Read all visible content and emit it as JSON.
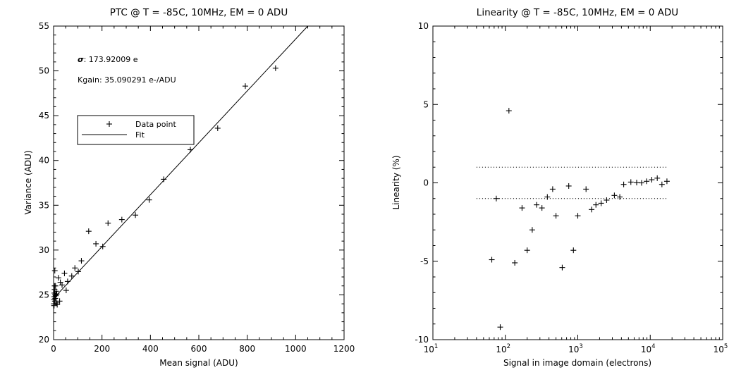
{
  "chart_data": [
    {
      "type": "scatter",
      "title": "PTC @ T = -85C, 10MHz, EM = 0 ADU",
      "xlabel": "Mean signal (ADU)",
      "ylabel": "Variance (ADU)",
      "xlim": [
        0,
        1200
      ],
      "ylim": [
        20,
        55
      ],
      "xticks": [
        0,
        200,
        400,
        600,
        800,
        1000,
        1200
      ],
      "yticks": [
        20,
        25,
        30,
        35,
        40,
        45,
        50,
        55
      ],
      "annotations": {
        "sigma_symbol": "σ",
        "sigma_text": ": 173.92009 e",
        "kgain_text": "Kgain: 35.090291 e-/ADU"
      },
      "legend": {
        "position": "upper-left",
        "entries": [
          {
            "marker": "+",
            "label": "Data point"
          },
          {
            "marker": "line",
            "label": "Fit"
          }
        ]
      },
      "series": [
        {
          "name": "Data point",
          "marker": "+",
          "points": [
            [
              1,
              24.0
            ],
            [
              2,
              23.8
            ],
            [
              2,
              24.5
            ],
            [
              3,
              25.2
            ],
            [
              3,
              24.8
            ],
            [
              4,
              26.0
            ],
            [
              4,
              25.6
            ],
            [
              5,
              24.3
            ],
            [
              5,
              27.7
            ],
            [
              6,
              25.0
            ],
            [
              7,
              24.6
            ],
            [
              8,
              26.0
            ],
            [
              9,
              24.9
            ],
            [
              10,
              25.4
            ],
            [
              12,
              24.1
            ],
            [
              13,
              25.1
            ],
            [
              15,
              23.9
            ],
            [
              20,
              26.9
            ],
            [
              25,
              24.3
            ],
            [
              28,
              26.4
            ],
            [
              35,
              26.1
            ],
            [
              45,
              27.4
            ],
            [
              52,
              25.5
            ],
            [
              58,
              26.5
            ],
            [
              75,
              27.1
            ],
            [
              88,
              28.0
            ],
            [
              102,
              27.6
            ],
            [
              115,
              28.8
            ],
            [
              145,
              32.1
            ],
            [
              175,
              30.7
            ],
            [
              203,
              30.4
            ],
            [
              225,
              33.0
            ],
            [
              282,
              33.4
            ],
            [
              338,
              33.9
            ],
            [
              395,
              35.6
            ],
            [
              455,
              37.9
            ],
            [
              565,
              41.2
            ],
            [
              678,
              43.6
            ],
            [
              792,
              48.3
            ],
            [
              917,
              50.3
            ]
          ]
        },
        {
          "name": "Fit",
          "line": [
            [
              0,
              24.6
            ],
            [
              1050,
              55.0
            ]
          ]
        }
      ]
    },
    {
      "type": "scatter",
      "title": "Linearity @ T = -85C, 10MHz, EM = 0 ADU",
      "xlabel": "Signal in image domain (electrons)",
      "ylabel": "Linearity (%)",
      "xscale": "log",
      "xlim": [
        10,
        100000
      ],
      "ylim": [
        -10,
        10
      ],
      "xticks": [
        {
          "value": 10,
          "base": "10",
          "exp": "1"
        },
        {
          "value": 100,
          "base": "10",
          "exp": "2"
        },
        {
          "value": 1000,
          "base": "10",
          "exp": "3"
        },
        {
          "value": 10000,
          "base": "10",
          "exp": "4"
        },
        {
          "value": 100000,
          "base": "10",
          "exp": "5"
        }
      ],
      "yticks": [
        -10,
        -5,
        0,
        5,
        10
      ],
      "reference_lines": [
        {
          "y": 1,
          "x_from": 40,
          "x_to": 17000,
          "style": "dotted"
        },
        {
          "y": -1,
          "x_from": 40,
          "x_to": 17000,
          "style": "dotted"
        }
      ],
      "series": [
        {
          "name": "Data point",
          "marker": "+",
          "points": [
            [
              65,
              -4.9
            ],
            [
              75,
              -1.0
            ],
            [
              85,
              -9.2
            ],
            [
              112,
              4.6
            ],
            [
              135,
              -5.1
            ],
            [
              170,
              -1.6
            ],
            [
              200,
              -4.3
            ],
            [
              235,
              -3.0
            ],
            [
              270,
              -1.4
            ],
            [
              320,
              -1.6
            ],
            [
              380,
              -0.9
            ],
            [
              450,
              -0.4
            ],
            [
              500,
              -2.1
            ],
            [
              610,
              -5.4
            ],
            [
              750,
              -0.2
            ],
            [
              870,
              -4.3
            ],
            [
              1000,
              -2.1
            ],
            [
              1300,
              -0.4
            ],
            [
              1550,
              -1.7
            ],
            [
              1780,
              -1.4
            ],
            [
              2100,
              -1.3
            ],
            [
              2500,
              -1.1
            ],
            [
              3200,
              -0.8
            ],
            [
              3800,
              -0.9
            ],
            [
              4300,
              -0.1
            ],
            [
              5400,
              0.05
            ],
            [
              6500,
              0.02
            ],
            [
              7600,
              0.0
            ],
            [
              8900,
              0.1
            ],
            [
              10500,
              0.2
            ],
            [
              12500,
              0.3
            ],
            [
              14500,
              -0.1
            ],
            [
              17000,
              0.1
            ]
          ]
        }
      ]
    }
  ]
}
